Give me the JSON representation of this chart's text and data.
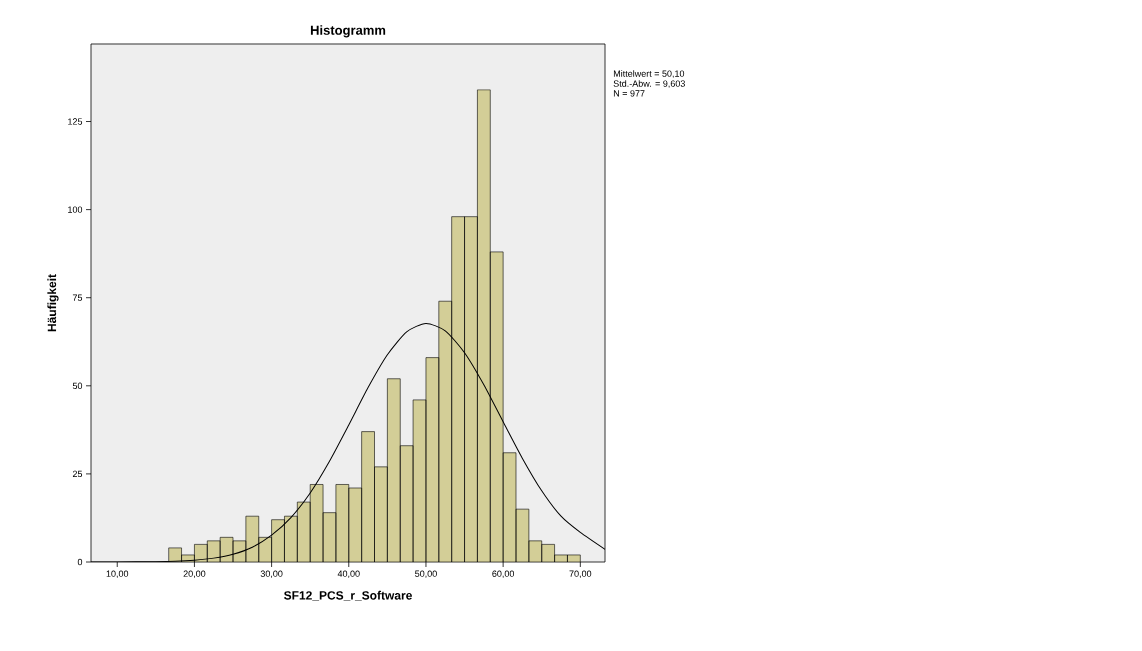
{
  "chart_data": {
    "type": "histogram",
    "title": "Histogramm",
    "xlabel": "SF12_PCS_r_Software",
    "ylabel": "Häufigkeit",
    "bins": [
      16.667,
      18.333,
      20.0,
      21.667,
      23.333,
      25.0,
      26.667,
      28.333,
      30.0,
      31.667,
      33.333,
      35.0,
      36.667,
      38.333,
      40.0,
      41.667,
      43.333,
      45.0,
      46.667,
      48.333,
      50.0,
      51.667,
      53.333,
      55.0,
      56.667,
      58.333,
      60.0,
      61.667,
      63.333,
      65.0,
      66.667,
      68.333,
      70.0
    ],
    "values": [
      4,
      2,
      5,
      6,
      7,
      6,
      13,
      7,
      12,
      13,
      17,
      22,
      14,
      22,
      21,
      37,
      27,
      52,
      33,
      46,
      58,
      74,
      98,
      98,
      134,
      88,
      31,
      15,
      6,
      5,
      2,
      2
    ],
    "color": "#d3ce97",
    "series": [
      {
        "type": "line",
        "color": "#000000",
        "x": [
          6.6,
          10,
          15,
          17.5,
          20,
          22.5,
          25,
          27.5,
          30,
          32.5,
          35,
          37.5,
          40,
          42.5,
          45,
          47.5,
          50,
          52.5,
          55,
          57.5,
          60,
          62.5,
          65,
          67.5,
          70,
          73.2
        ],
        "values": [
          0,
          0,
          0.1,
          0.2,
          0.5,
          1.1,
          2.2,
          4.2,
          7.6,
          12.6,
          19.6,
          28.6,
          38.9,
          49.5,
          58.8,
          65.3,
          67.7,
          65.6,
          59.4,
          50.3,
          39.8,
          29.4,
          20.2,
          13.0,
          8.4,
          3.6
        ]
      }
    ],
    "xlim": [
      6.6,
      73.2
    ],
    "ylim": [
      0,
      147
    ],
    "xticks": [
      {
        "value": 10,
        "label": "10,00"
      },
      {
        "value": 20,
        "label": "20,00"
      },
      {
        "value": 30,
        "label": "30,00"
      },
      {
        "value": 40,
        "label": "40,00"
      },
      {
        "value": 50,
        "label": "50,00"
      },
      {
        "value": 60,
        "label": "60,00"
      },
      {
        "value": 70,
        "label": "70,00"
      }
    ],
    "yticks": [
      0,
      25,
      50,
      75,
      100,
      125
    ],
    "annotations": [
      "Mittelwert = 50,10",
      "Std.-Abw. = 9,603",
      "N = 977"
    ]
  }
}
